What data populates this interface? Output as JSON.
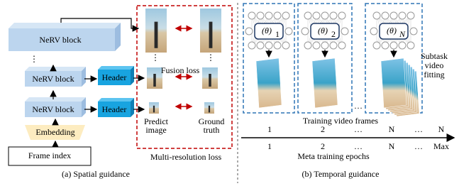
{
  "spatial": {
    "blocks": [
      "NeRV block",
      "NeRV block",
      "NeRV block"
    ],
    "dots": "⋮",
    "headers": [
      "Header",
      "Header"
    ],
    "embedding": "Embedding",
    "input": "Frame index",
    "fusion_loss": "Fusion loss",
    "predict_label": [
      "Predict",
      "image"
    ],
    "truth_label": [
      "Ground",
      "truth"
    ],
    "loss_label": "Multi-resolution loss",
    "caption": "(a) Spatial guidance"
  },
  "temporal": {
    "tasks": [
      {
        "param": "(θ)",
        "sub": "1"
      },
      {
        "param": "(θ)",
        "sub": "2"
      },
      {
        "param": "(θ)",
        "sub": "N"
      }
    ],
    "ellipsis": "…",
    "subtask_label": [
      "Subtask",
      "video",
      "fitting"
    ],
    "frames_label": "Training video frames",
    "row1": [
      "1",
      "2",
      "…",
      "N",
      "…",
      "N"
    ],
    "row2": [
      "1",
      "2",
      "…",
      "N",
      "…",
      "Max"
    ],
    "epochs_label": "Meta training epochs",
    "caption": "(b) Temporal guidance"
  }
}
